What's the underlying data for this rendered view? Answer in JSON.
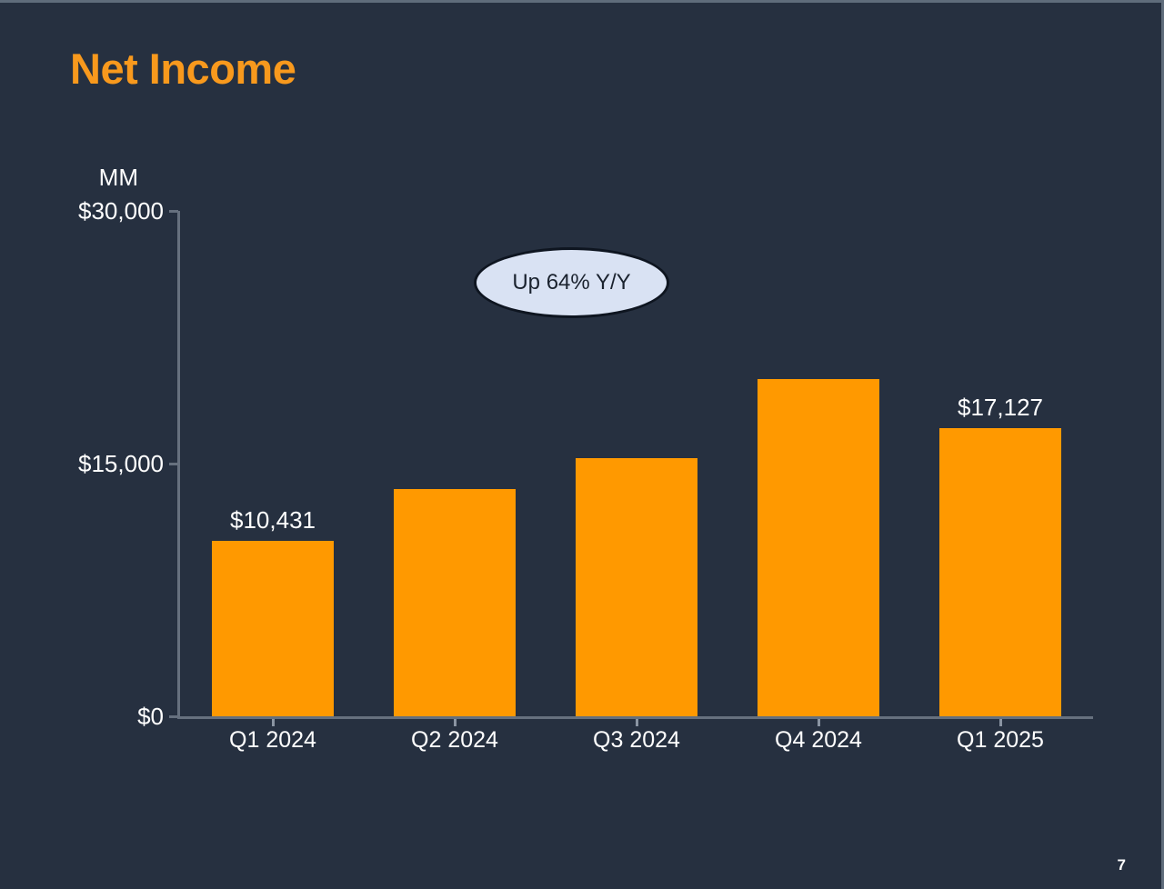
{
  "title": {
    "text": "Net Income"
  },
  "footer": {
    "page_number": "7"
  },
  "colors": {
    "background": "#263040",
    "title_orange": "#f8991d",
    "bar_orange": "#ff9900",
    "axis_gray": "#66707e",
    "text_white": "#ffffff",
    "callout_fill": "#d9e2f3",
    "callout_border": "#0e1520",
    "edge_border": "#5f6c7b"
  },
  "chart_data": {
    "type": "bar",
    "title": "Net Income",
    "unit_label": "MM",
    "categories": [
      "Q1 2024",
      "Q2 2024",
      "Q3 2024",
      "Q4 2024",
      "Q1 2025"
    ],
    "values": [
      10431,
      13485,
      15328,
      20004,
      17127
    ],
    "bar_labels": [
      "$10,431",
      null,
      null,
      null,
      "$17,127"
    ],
    "yticks": [
      {
        "value": 0,
        "label": "$0"
      },
      {
        "value": 15000,
        "label": "$15,000"
      },
      {
        "value": 30000,
        "label": "$30,000"
      }
    ],
    "ylim": [
      0,
      30000
    ],
    "grid": false,
    "legend": "none",
    "annotation": {
      "text": "Up 64% Y/Y"
    }
  }
}
